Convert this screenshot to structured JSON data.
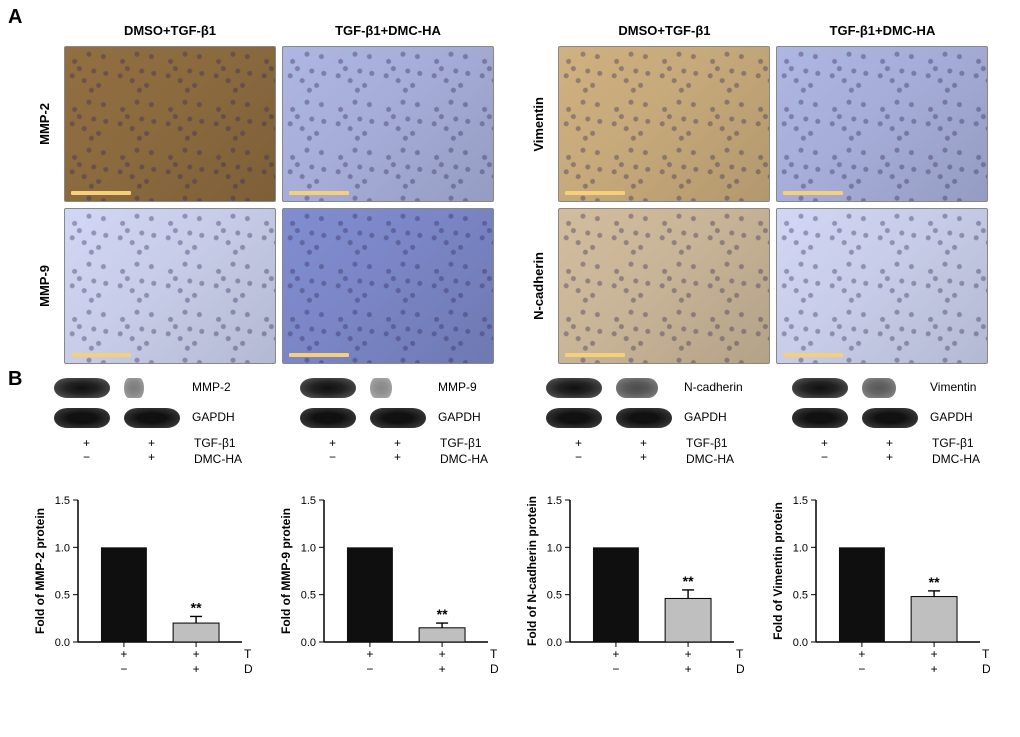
{
  "colors": {
    "brown_heavy": "#8b6a3e",
    "brown_light": "#c6a97a",
    "blue_heavy": "#7a86c6",
    "blue_mid": "#a6add8",
    "blue_light": "#c7cde8",
    "tan": "#c8b496",
    "bar_control": "#0f0f10",
    "bar_treated": "#bfbfbf",
    "error_bar": "#000000",
    "axis": "#000000"
  },
  "panelA": {
    "letter": "A",
    "left": {
      "cols": [
        "DMSO+TGF-β1",
        "TGF-β1+DMC-HA"
      ],
      "rows": [
        "MMP-2",
        "MMP-9"
      ],
      "tiles": [
        [
          "brown_heavy",
          "blue_mid"
        ],
        [
          "blue_light",
          "blue_heavy"
        ]
      ]
    },
    "right": {
      "cols": [
        "DMSO+TGF-β1",
        "TGF-β1+DMC-HA"
      ],
      "rows": [
        "Vimentin",
        "N-cadherin"
      ],
      "tiles": [
        [
          "brown_light",
          "blue_mid"
        ],
        [
          "tan",
          "blue_light"
        ]
      ]
    }
  },
  "panelB": {
    "letter": "B",
    "ylim": [
      0,
      1.5
    ],
    "yticks": [
      0,
      0.5,
      1.0,
      1.5
    ],
    "xlabels": [
      "+",
      "+",
      "−",
      "+"
    ],
    "treat1": "TGF-β1",
    "treat2": "DMC-HA",
    "sign_rows": [
      [
        "+",
        "+"
      ],
      [
        "−",
        "+"
      ]
    ],
    "proteins": [
      {
        "name": "MMP-2",
        "ylab": "Fold of MMP-2 protein",
        "control": 1.0,
        "treated": 0.2,
        "err": 0.07,
        "sig": "**",
        "band_treated_w": 0.35,
        "band_treated_op": 0.55
      },
      {
        "name": "MMP-9",
        "ylab": "Fold of MMP-9 protein",
        "control": 1.0,
        "treated": 0.15,
        "err": 0.05,
        "sig": "**",
        "band_treated_w": 0.4,
        "band_treated_op": 0.5
      },
      {
        "name": "N-cadherin",
        "ylab": "Fold of N-cadherin protein",
        "control": 1.0,
        "treated": 0.46,
        "err": 0.09,
        "sig": "**",
        "band_treated_w": 0.75,
        "band_treated_op": 0.75
      },
      {
        "name": "Vimentin",
        "ylab": "Fold of Vimentin protein",
        "control": 1.0,
        "treated": 0.48,
        "err": 0.06,
        "sig": "**",
        "band_treated_w": 0.6,
        "band_treated_op": 0.7
      }
    ],
    "loading_ctrl": "GAPDH",
    "bar_width": 0.55
  }
}
